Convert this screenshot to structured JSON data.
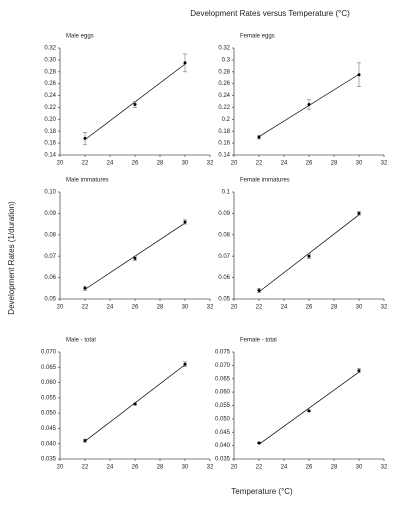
{
  "title": "Development Rates versus Temperature (°C)",
  "y_label": "Development Rates (1/duration)",
  "x_label": "Temperature (°C)",
  "chart_data": [
    {
      "type": "scatter",
      "title": "Male eggs",
      "x": [
        22,
        26,
        30
      ],
      "values": [
        0.168,
        0.225,
        0.295
      ],
      "errors": [
        0.01,
        0.005,
        0.015
      ],
      "xlim": [
        20,
        32
      ],
      "xticks": [
        20,
        22,
        24,
        26,
        28,
        30,
        32
      ],
      "ylim": [
        0.14,
        0.32
      ],
      "yticks": [
        0.14,
        0.16,
        0.18,
        {
          "value": 0.2,
          "label": "0.20"
        },
        0.22,
        0.24,
        0.26,
        0.28,
        {
          "value": 0.3,
          "label": "0.30"
        },
        0.32
      ],
      "color": "#000000",
      "trendline": "linear"
    },
    {
      "type": "scatter",
      "title": "Female eggs",
      "x": [
        22,
        26,
        30
      ],
      "values": [
        0.17,
        0.225,
        0.275
      ],
      "errors": [
        0.003,
        0.008,
        0.02
      ],
      "xlim": [
        20,
        32
      ],
      "xticks": [
        20,
        22,
        24,
        26,
        28,
        30,
        32
      ],
      "ylim": [
        0.14,
        0.32
      ],
      "yticks": [
        0.14,
        0.16,
        0.18,
        0.2,
        0.22,
        0.24,
        0.26,
        0.28,
        0.3,
        0.32
      ],
      "color": "#000000",
      "trendline": "linear"
    },
    {
      "type": "scatter",
      "title": "Male immatures",
      "x": [
        22,
        26,
        30
      ],
      "values": [
        0.055,
        0.069,
        0.086
      ],
      "errors": [
        0.001,
        0.001,
        0.001
      ],
      "xlim": [
        20,
        32
      ],
      "xticks": [
        20,
        22,
        24,
        26,
        28,
        30,
        32
      ],
      "ylim": [
        0.05,
        0.1
      ],
      "yticks": [
        {
          "value": 0.05,
          "label": "0.05"
        },
        0.06,
        0.07,
        0.08,
        0.09,
        {
          "value": 0.1,
          "label": "0.10"
        }
      ],
      "color": "#000000",
      "trendline": "linear"
    },
    {
      "type": "scatter",
      "title": "Female immatures",
      "x": [
        22,
        26,
        30
      ],
      "values": [
        0.054,
        0.07,
        0.09
      ],
      "errors": [
        0.001,
        0.001,
        0.0008
      ],
      "xlim": [
        20,
        32
      ],
      "xticks": [
        20,
        22,
        24,
        26,
        28,
        30,
        32
      ],
      "ylim": [
        0.05,
        0.1
      ],
      "yticks": [
        0.05,
        0.06,
        0.07,
        0.08,
        0.09,
        0.1
      ],
      "color": "#000000",
      "trendline": "linear"
    },
    {
      "type": "scatter",
      "title": "Male - total",
      "x": [
        22,
        26,
        30
      ],
      "values": [
        0.041,
        0.053,
        0.066
      ],
      "errors": [
        0.0005,
        0.0003,
        0.0008
      ],
      "xlim": [
        20,
        32
      ],
      "xticks": [
        20,
        22,
        24,
        26,
        28,
        30,
        32
      ],
      "ylim": [
        0.035,
        0.07
      ],
      "yticks": [
        0.035,
        {
          "value": 0.04,
          "label": "0.040"
        },
        0.045,
        {
          "value": 0.05,
          "label": "0.050"
        },
        0.055,
        {
          "value": 0.06,
          "label": "0.060"
        },
        0.065,
        {
          "value": 0.07,
          "label": "0.070"
        }
      ],
      "color": "#000000",
      "trendline": "linear"
    },
    {
      "type": "scatter",
      "title": "Female - total",
      "x": [
        22,
        26,
        30
      ],
      "values": [
        0.041,
        0.053,
        0.068
      ],
      "errors": [
        0.0003,
        0.0003,
        0.0008
      ],
      "xlim": [
        20,
        32
      ],
      "xticks": [
        20,
        22,
        24,
        26,
        28,
        30,
        32
      ],
      "ylim": [
        0.035,
        0.075
      ],
      "yticks": [
        0.035,
        {
          "value": 0.04,
          "label": "0.040"
        },
        0.045,
        {
          "value": 0.05,
          "label": "0.050"
        },
        0.055,
        {
          "value": 0.06,
          "label": "0.060"
        },
        0.065,
        {
          "value": 0.07,
          "label": "0.070"
        },
        0.075
      ],
      "color": "#000000",
      "trendline": "linear"
    }
  ]
}
